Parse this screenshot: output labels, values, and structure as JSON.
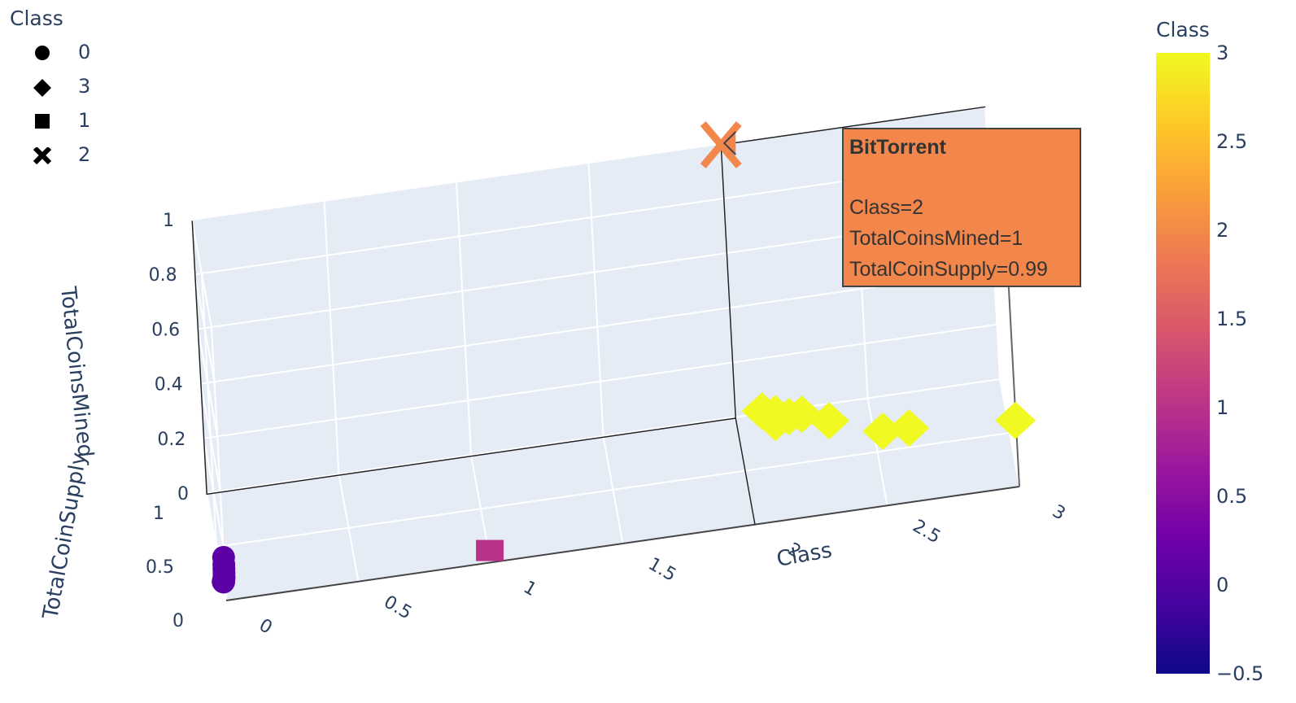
{
  "chart_data": {
    "type": "scatter",
    "subtype": "scatter3d",
    "axes": {
      "x": {
        "label": "Class",
        "range": [
          0,
          3
        ],
        "ticks": [
          "0",
          "0.5",
          "1",
          "1.5",
          "2",
          "2.5",
          "3"
        ]
      },
      "y": {
        "label": "TotalCoinSupply",
        "range": [
          0,
          1
        ],
        "ticks": [
          "0",
          "0.5",
          "1"
        ]
      },
      "z": {
        "label": "TotalCoinsMined",
        "range": [
          0,
          1
        ],
        "ticks": [
          "0",
          "0.2",
          "0.4",
          "0.6",
          "0.8",
          "1"
        ]
      }
    },
    "legend": {
      "title": "Class",
      "position": "top-left",
      "items": [
        {
          "label": "0",
          "symbol": "circle"
        },
        {
          "label": "3",
          "symbol": "diamond"
        },
        {
          "label": "1",
          "symbol": "square"
        },
        {
          "label": "2",
          "symbol": "x"
        }
      ]
    },
    "colorbar": {
      "title": "Class",
      "range": [
        -0.5,
        3
      ],
      "ticks": [
        "3",
        "2.5",
        "2",
        "1.5",
        "1",
        "0.5",
        "0",
        "−0.5"
      ],
      "colors": [
        "#0d0887",
        "#46039f",
        "#7201a8",
        "#9c179e",
        "#bd3786",
        "#d8576b",
        "#ed7953",
        "#fb9f3a",
        "#fdca26",
        "#f0f921"
      ]
    },
    "series": [
      {
        "name": "0",
        "symbol": "circle",
        "color": "#5c01a6",
        "points": [
          [
            0,
            0.02,
            0.15
          ],
          [
            0,
            0.03,
            0.12
          ],
          [
            0,
            0.04,
            0.1
          ],
          [
            0,
            0.05,
            0.08
          ],
          [
            0,
            0.06,
            0.06
          ],
          [
            0,
            0.08,
            0.05
          ],
          [
            0,
            0.1,
            0.03
          ],
          [
            0,
            0.12,
            0.02
          ],
          [
            0,
            0.15,
            0.01
          ]
        ]
      },
      {
        "name": "1",
        "symbol": "square",
        "color": "#b83289",
        "points": [
          [
            1,
            0.01,
            0.04
          ]
        ]
      },
      {
        "name": "2",
        "symbol": "x",
        "color": "#f2864b",
        "points": [
          [
            2,
            0.99,
            1.0
          ]
        ]
      },
      {
        "name": "3",
        "symbol": "diamond",
        "color": "#f0f921",
        "points": [
          [
            2.05,
            0.02,
            0.4
          ],
          [
            2.1,
            0.03,
            0.38
          ],
          [
            2.15,
            0.01,
            0.37
          ],
          [
            2.2,
            0.04,
            0.36
          ],
          [
            2.1,
            0.05,
            0.34
          ],
          [
            2.3,
            0.02,
            0.33
          ],
          [
            2.5,
            0.03,
            0.26
          ],
          [
            2.6,
            0.05,
            0.25
          ],
          [
            3.0,
            0.03,
            0.23
          ]
        ]
      }
    ],
    "hover": {
      "title": "BitTorrent",
      "lines": [
        "Class=2",
        "TotalCoinsMined=1",
        "TotalCoinSupply=0.99"
      ]
    }
  }
}
